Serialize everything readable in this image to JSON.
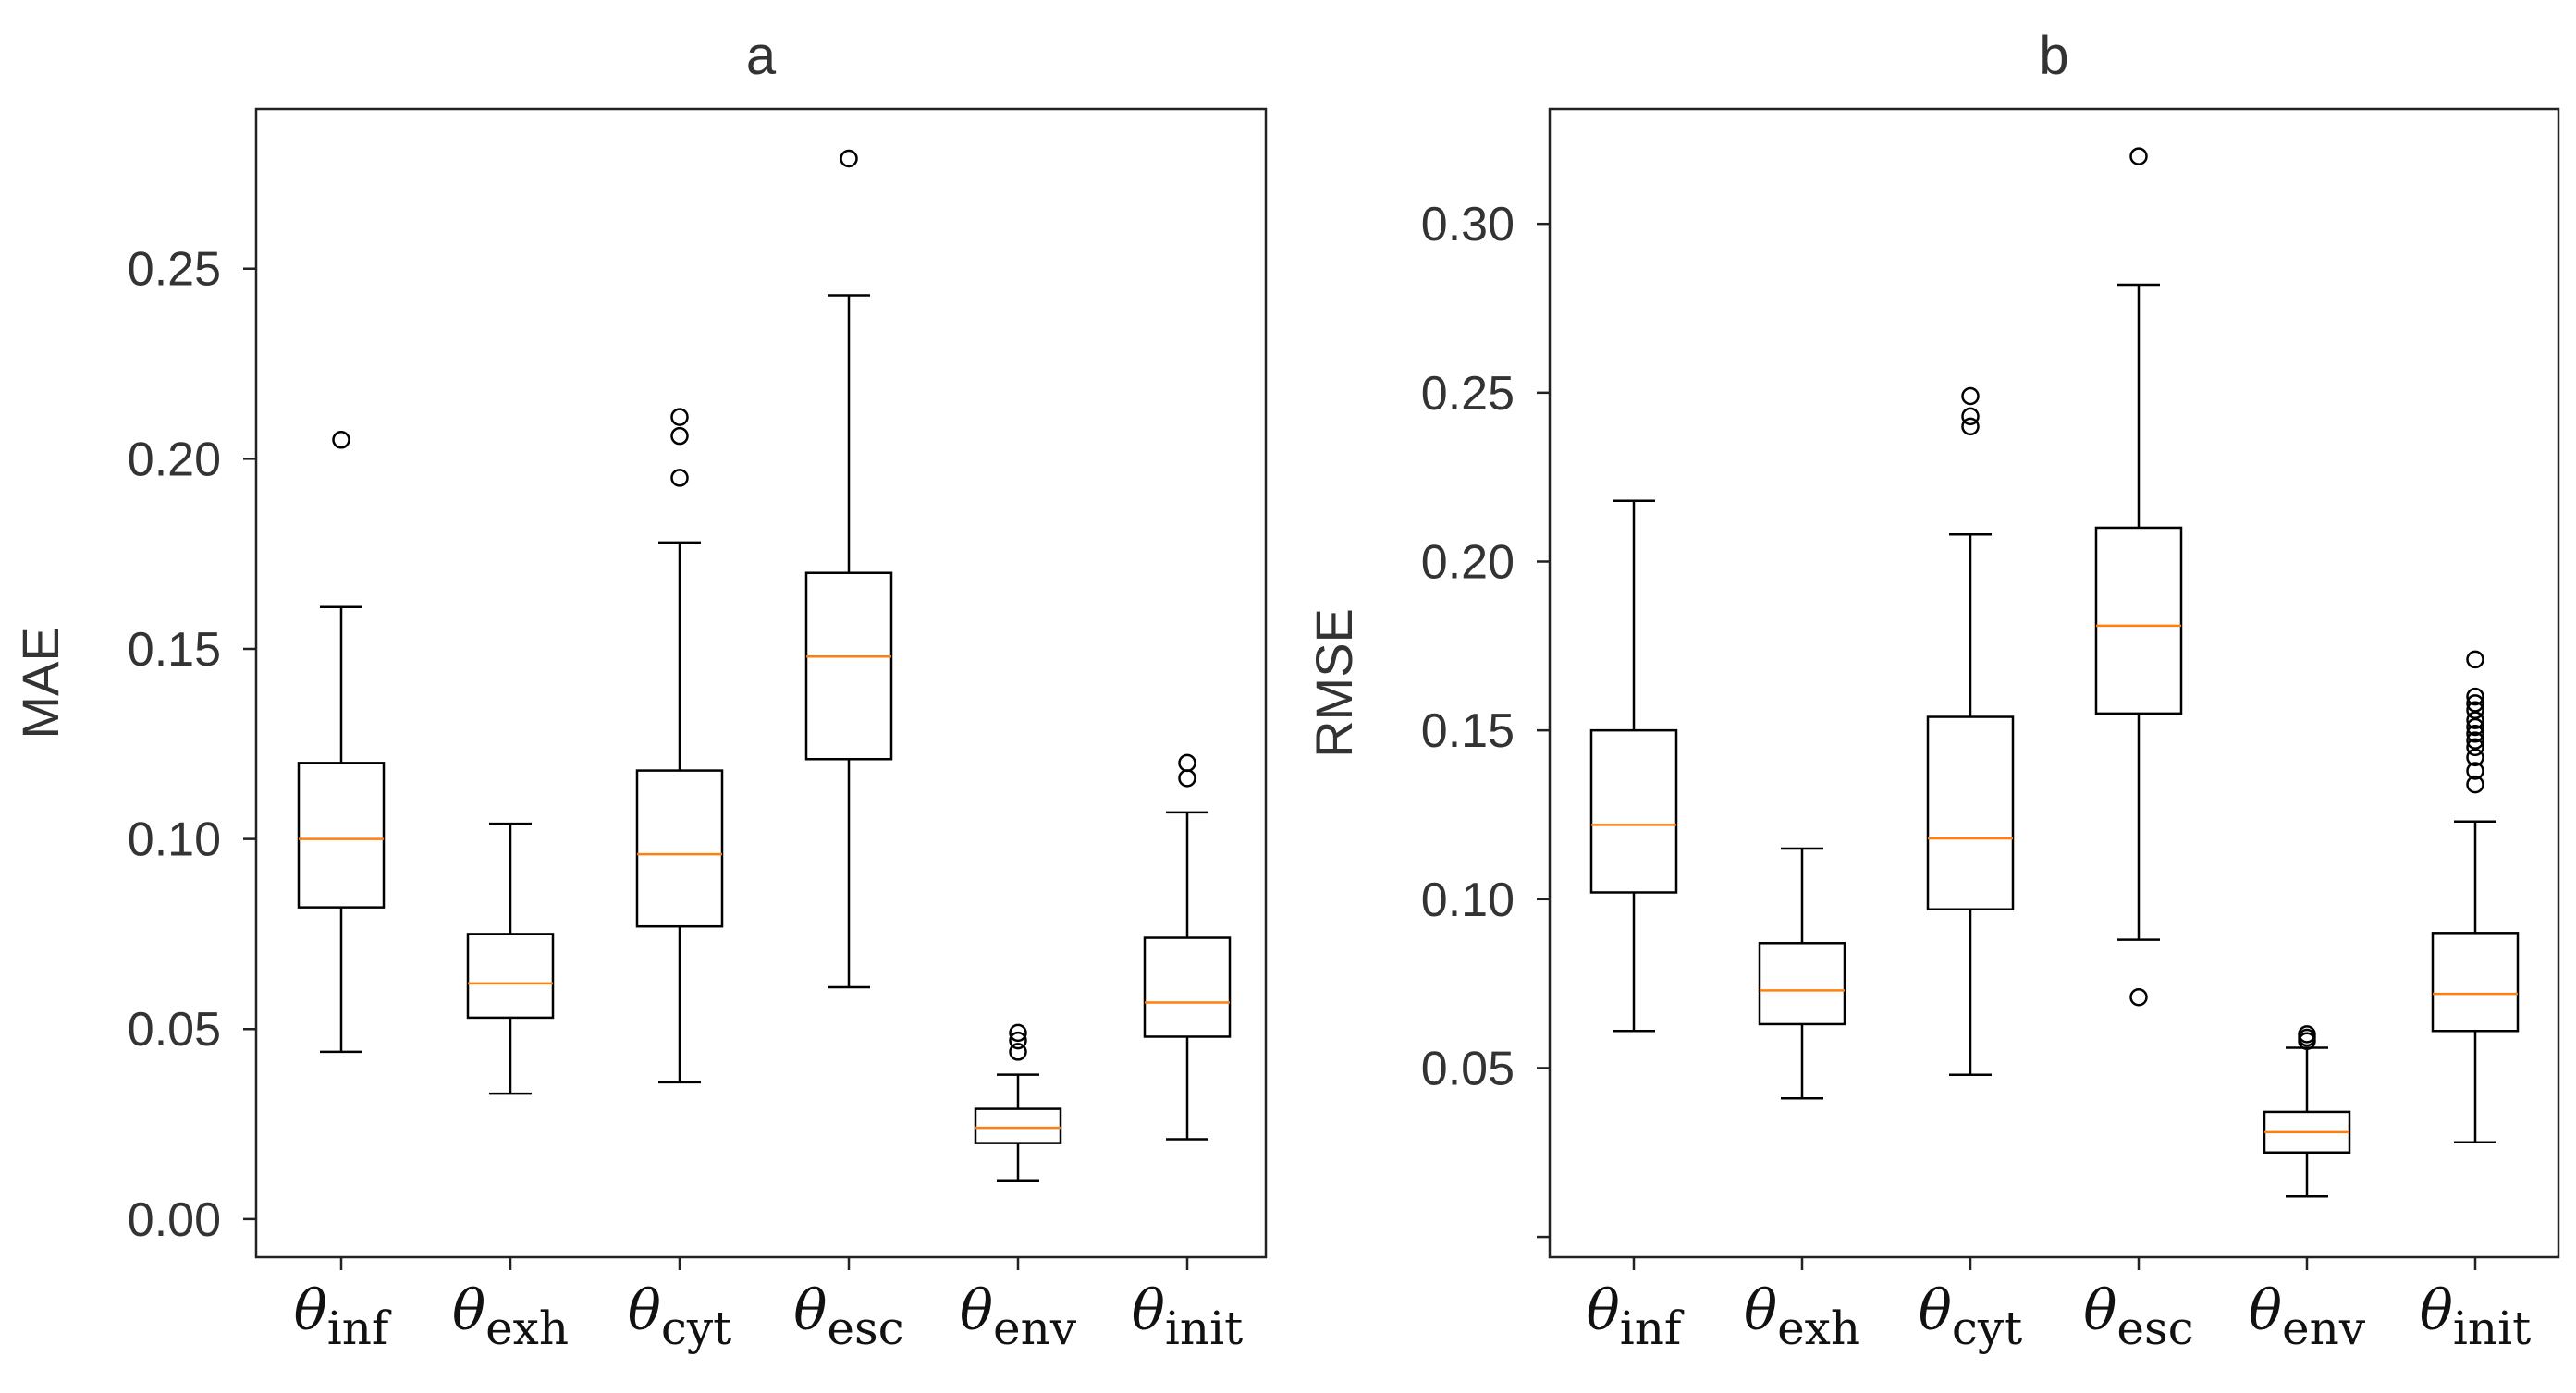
{
  "chart_data": [
    {
      "type": "box",
      "title": "a",
      "ylabel": "MAE",
      "ylim": [
        -0.01,
        0.292
      ],
      "yticks": [
        0.0,
        0.05,
        0.1,
        0.15,
        0.2,
        0.25
      ],
      "yticklabels": [
        "0.00",
        "0.05",
        "0.10",
        "0.15",
        "0.20",
        "0.25"
      ],
      "grid": false,
      "median_color": "#ff7f0e",
      "categories": [
        {
          "symbol": "θ",
          "sub": "inf"
        },
        {
          "symbol": "θ",
          "sub": "exh"
        },
        {
          "symbol": "θ",
          "sub": "cyt"
        },
        {
          "symbol": "θ",
          "sub": "esc"
        },
        {
          "symbol": "θ",
          "sub": "env"
        },
        {
          "symbol": "θ",
          "sub": "init"
        }
      ],
      "boxes": [
        {
          "whislo": 0.044,
          "q1": 0.082,
          "med": 0.1,
          "q3": 0.12,
          "whishi": 0.161,
          "fliers": [
            0.205
          ]
        },
        {
          "whislo": 0.033,
          "q1": 0.053,
          "med": 0.062,
          "q3": 0.075,
          "whishi": 0.104,
          "fliers": []
        },
        {
          "whislo": 0.036,
          "q1": 0.077,
          "med": 0.096,
          "q3": 0.118,
          "whishi": 0.178,
          "fliers": [
            0.195,
            0.206,
            0.211
          ]
        },
        {
          "whislo": 0.061,
          "q1": 0.121,
          "med": 0.148,
          "q3": 0.17,
          "whishi": 0.243,
          "fliers": [
            0.279
          ]
        },
        {
          "whislo": 0.01,
          "q1": 0.02,
          "med": 0.024,
          "q3": 0.029,
          "whishi": 0.038,
          "fliers": [
            0.044,
            0.047,
            0.049
          ]
        },
        {
          "whislo": 0.021,
          "q1": 0.048,
          "med": 0.057,
          "q3": 0.074,
          "whishi": 0.107,
          "fliers": [
            0.116,
            0.12
          ]
        }
      ]
    },
    {
      "type": "box",
      "title": "b",
      "ylabel": "RMSE",
      "ylim": [
        -0.006,
        0.334
      ],
      "yticks": [
        0.0,
        0.05,
        0.1,
        0.15,
        0.2,
        0.25,
        0.3
      ],
      "yticklabels": [
        "",
        "0.05",
        "0.10",
        "0.15",
        "0.20",
        "0.25",
        "0.30"
      ],
      "grid": false,
      "median_color": "#ff7f0e",
      "categories": [
        {
          "symbol": "θ",
          "sub": "inf"
        },
        {
          "symbol": "θ",
          "sub": "exh"
        },
        {
          "symbol": "θ",
          "sub": "cyt"
        },
        {
          "symbol": "θ",
          "sub": "esc"
        },
        {
          "symbol": "θ",
          "sub": "env"
        },
        {
          "symbol": "θ",
          "sub": "init"
        }
      ],
      "boxes": [
        {
          "whislo": 0.061,
          "q1": 0.102,
          "med": 0.122,
          "q3": 0.15,
          "whishi": 0.218,
          "fliers": []
        },
        {
          "whislo": 0.041,
          "q1": 0.063,
          "med": 0.073,
          "q3": 0.087,
          "whishi": 0.115,
          "fliers": []
        },
        {
          "whislo": 0.048,
          "q1": 0.097,
          "med": 0.118,
          "q3": 0.154,
          "whishi": 0.208,
          "fliers": [
            0.24,
            0.243,
            0.249
          ]
        },
        {
          "whislo": 0.088,
          "q1": 0.155,
          "med": 0.181,
          "q3": 0.21,
          "whishi": 0.282,
          "fliers": [
            0.071,
            0.32
          ]
        },
        {
          "whislo": 0.012,
          "q1": 0.025,
          "med": 0.031,
          "q3": 0.037,
          "whishi": 0.056,
          "fliers": [
            0.058,
            0.059,
            0.06
          ]
        },
        {
          "whislo": 0.028,
          "q1": 0.061,
          "med": 0.072,
          "q3": 0.09,
          "whishi": 0.123,
          "fliers": [
            0.134,
            0.138,
            0.142,
            0.145,
            0.147,
            0.149,
            0.151,
            0.153,
            0.156,
            0.158,
            0.16,
            0.171
          ]
        }
      ]
    }
  ]
}
